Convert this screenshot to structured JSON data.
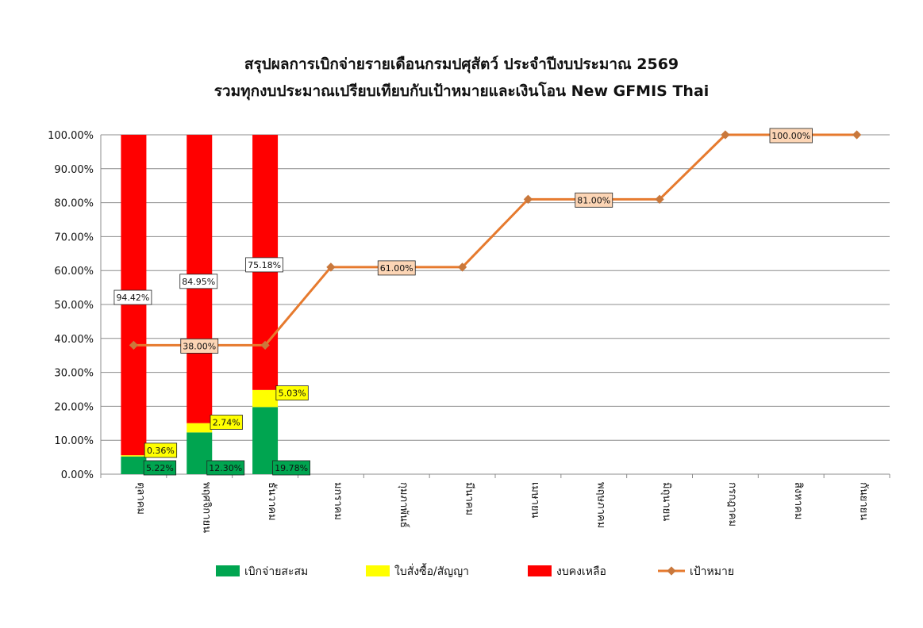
{
  "chart_data": {
    "type": "bar",
    "stacked": true,
    "title": "สรุปผลการเบิกจ่ายรายเดือนกรมปศุสัตว์ ประจำปีงบประมาณ 2569",
    "subtitle": "รวมทุกงบประมาณเปรียบเทียบกับเป้าหมายและเงินโอน New GFMIS Thai",
    "xlabel": "",
    "ylabel": "",
    "ylim": [
      0,
      100
    ],
    "ytick_step": 10,
    "ytick_format": "percent_2dp",
    "grid": true,
    "legend_position": "bottom",
    "categories": [
      "ตุลาคม",
      "พฤศจิกายน",
      "ธันวาคม",
      "มกราคม",
      "กุมภาพันธ์",
      "มีนาคม",
      "เมษายน",
      "พฤษภาคม",
      "มิถุนายน",
      "กรกฎาคม",
      "สิงหาคม",
      "กันยายน"
    ],
    "series": [
      {
        "name": "เบิกจ่ายสะสม",
        "kind": "bar",
        "color": "#00a550",
        "values": [
          5.22,
          12.3,
          19.78,
          null,
          null,
          null,
          null,
          null,
          null,
          null,
          null,
          null
        ],
        "labels": [
          "5.22%",
          "12.30%",
          "19.78%"
        ]
      },
      {
        "name": "ใบสั่งซื้อ/สัญญา",
        "kind": "bar",
        "color": "#ffff00",
        "values": [
          0.36,
          2.74,
          5.03,
          null,
          null,
          null,
          null,
          null,
          null,
          null,
          null,
          null
        ],
        "labels": [
          "0.36%",
          "2.74%",
          "5.03%"
        ]
      },
      {
        "name": "งบคงเหลือ",
        "kind": "bar",
        "color": "#ff0000",
        "values": [
          94.42,
          84.95,
          75.18,
          null,
          null,
          null,
          null,
          null,
          null,
          null,
          null,
          null
        ],
        "labels": [
          "94.42%",
          "84.95%",
          "75.18%"
        ]
      },
      {
        "name": "เป้าหมาย",
        "kind": "line",
        "color": "#e67a2e",
        "values": [
          38,
          38,
          38,
          61,
          61,
          61,
          81,
          81,
          81,
          100,
          100,
          100
        ],
        "labels": [
          "38.00%",
          "61.00%",
          "81.00%",
          "100.00%"
        ],
        "label_at": [
          1,
          4,
          7,
          10
        ]
      }
    ]
  }
}
